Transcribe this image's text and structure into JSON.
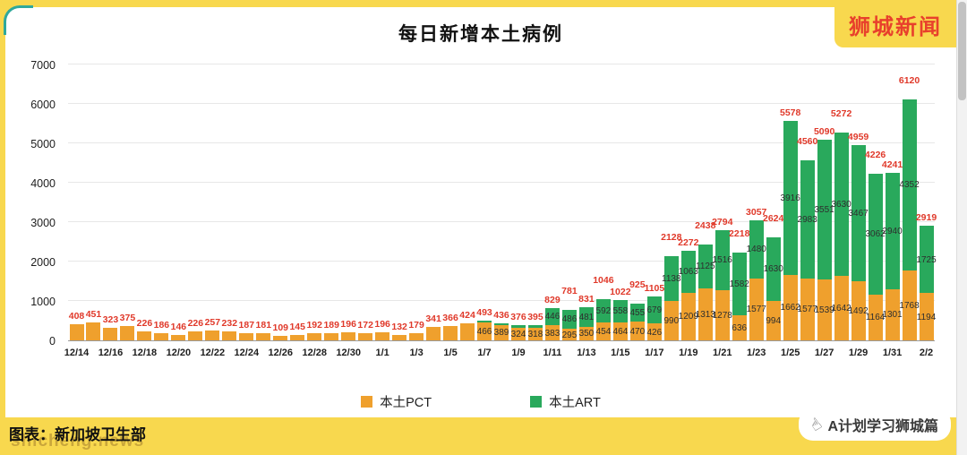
{
  "brand": {
    "logo_text": "狮城新闻",
    "color": "#E8402C"
  },
  "footer": {
    "watermark": "shicheng.news",
    "credit": "图表：新加坡卫生部",
    "right_tag": "A计划学习狮城篇",
    "hand_icon": "☝"
  },
  "chart_data": {
    "type": "bar",
    "stacked": true,
    "title": "每日新增本土病例",
    "xlabel": "",
    "ylabel": "",
    "ylim": [
      0,
      7000
    ],
    "yticks": [
      0,
      1000,
      2000,
      3000,
      4000,
      5000,
      6000,
      7000
    ],
    "grid": true,
    "legend_position": "bottom",
    "total_label_color": "#E0392A",
    "x_tick_labels": [
      "12/14",
      "12/16",
      "12/18",
      "12/20",
      "12/22",
      "12/24",
      "12/26",
      "12/28",
      "12/30",
      "1/1",
      "1/3",
      "1/5",
      "1/7",
      "1/9",
      "1/11",
      "1/13",
      "1/15",
      "1/17",
      "1/19",
      "1/21",
      "1/23",
      "1/25",
      "1/27",
      "1/29",
      "1/31",
      "2/2"
    ],
    "categories": [
      "12/14",
      "12/15",
      "12/16",
      "12/17",
      "12/18",
      "12/19",
      "12/20",
      "12/21",
      "12/22",
      "12/23",
      "12/24",
      "12/25",
      "12/26",
      "12/27",
      "12/28",
      "12/29",
      "12/30",
      "12/31",
      "1/1",
      "1/2",
      "1/3",
      "1/4",
      "1/5",
      "1/6",
      "1/7",
      "1/8",
      "1/9",
      "1/10",
      "1/11",
      "1/12",
      "1/13",
      "1/14",
      "1/15",
      "1/16",
      "1/17",
      "1/18",
      "1/19",
      "1/20",
      "1/21",
      "1/22",
      "1/23",
      "1/24",
      "1/25",
      "1/26",
      "1/27",
      "1/28",
      "1/29",
      "1/30",
      "1/31",
      "2/1",
      "2/2"
    ],
    "series": [
      {
        "name": "本土PCT",
        "color": "#EFA02D",
        "values": [
          408,
          451,
          323,
          375,
          226,
          186,
          146,
          226,
          257,
          232,
          187,
          181,
          109,
          145,
          192,
          189,
          196,
          172,
          196,
          132,
          179,
          341,
          366,
          424,
          466,
          389,
          324,
          318,
          383,
          295,
          350,
          454,
          464,
          470,
          426,
          990,
          1209,
          1313,
          1278,
          636,
          1577,
          994,
          1662,
          1577,
          1539,
          1642,
          1492,
          1164,
          1301,
          1768,
          1194
        ]
      },
      {
        "name": "本土ART",
        "color": "#29A95C",
        "values": [
          0,
          0,
          0,
          0,
          0,
          0,
          0,
          0,
          0,
          0,
          0,
          0,
          0,
          0,
          0,
          0,
          0,
          0,
          0,
          0,
          0,
          0,
          0,
          0,
          27,
          47,
          52,
          77,
          446,
          486,
          481,
          592,
          558,
          455,
          679,
          1138,
          1063,
          1125,
          1516,
          1582,
          1480,
          1630,
          3916,
          2983,
          3551,
          3630,
          3467,
          3062,
          2940,
          4352,
          1725
        ]
      }
    ],
    "totals": [
      408,
      451,
      323,
      375,
      226,
      186,
      146,
      226,
      257,
      232,
      187,
      181,
      109,
      145,
      192,
      189,
      196,
      172,
      196,
      132,
      179,
      341,
      366,
      424,
      493,
      436,
      376,
      395,
      829,
      781,
      831,
      1046,
      1022,
      925,
      1105,
      2128,
      2272,
      2438,
      2794,
      2218,
      3057,
      2624,
      5578,
      4560,
      5090,
      5272,
      4959,
      4226,
      4241,
      6120,
      2919
    ]
  }
}
